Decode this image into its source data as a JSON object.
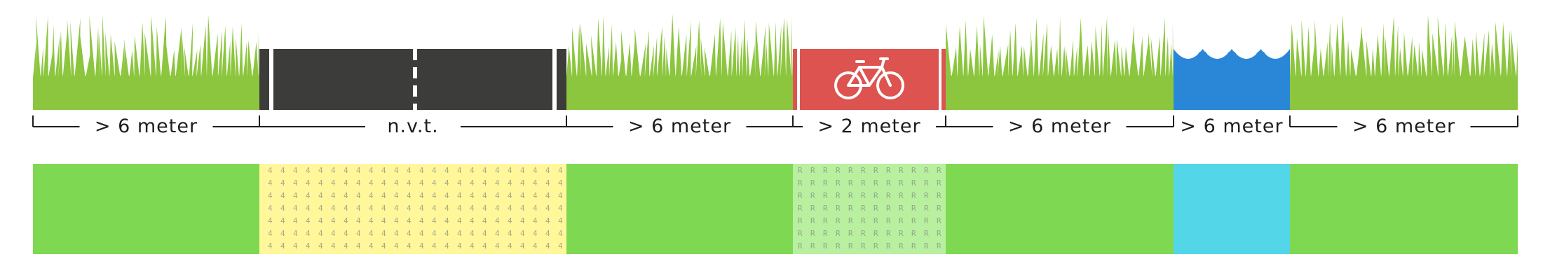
{
  "colors": {
    "grass": "#8cc63f",
    "road": "#3c3c3b",
    "road_marking": "#ffffff",
    "cycle_path": "#dc5350",
    "water": "#2a87d8",
    "map_green": "#7fd852",
    "map_yellow": "#fff799",
    "map_lightgreen": "#b8f0a0",
    "map_blue": "#52d6e8",
    "dimension_line": "#1d1d1b"
  },
  "icons": {
    "grass": "grass-icon",
    "bicycle": "bicycle-icon",
    "water": "water-wave-icon"
  },
  "segments": [
    {
      "name": "grass",
      "label": "> 6 meter",
      "map_fill": "green"
    },
    {
      "name": "road",
      "label": "n.v.t.",
      "map_fill": "yellow",
      "map_pattern_char": "4"
    },
    {
      "name": "grass",
      "label": "> 6 meter",
      "map_fill": "green"
    },
    {
      "name": "cycle-path",
      "label": "> 2 meter",
      "map_fill": "lightgreen",
      "map_pattern_char": "R"
    },
    {
      "name": "grass",
      "label": "> 6 meter",
      "map_fill": "green"
    },
    {
      "name": "water",
      "label": "> 6 meter",
      "map_fill": "blue"
    },
    {
      "name": "grass",
      "label": "> 6 meter",
      "map_fill": "green"
    }
  ]
}
